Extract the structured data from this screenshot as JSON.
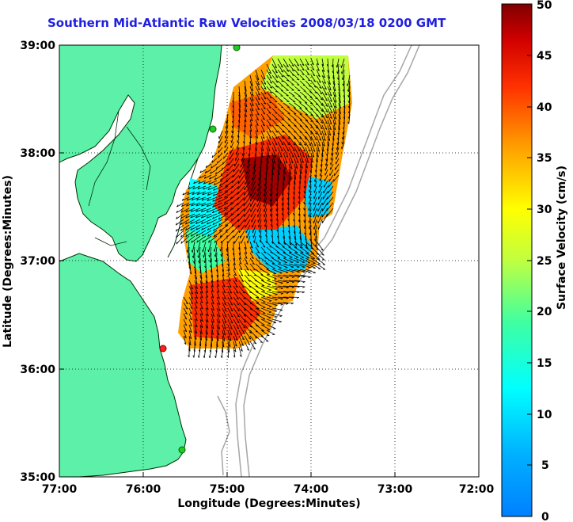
{
  "title": "Southern Mid-Atlantic Raw Velocities 2008/03/18 0200 GMT",
  "x_axis": {
    "label": "Longitude (Degrees:Minutes)",
    "ticks": [
      "77:00",
      "76:00",
      "75:00",
      "74:00",
      "73:00",
      "72:00"
    ]
  },
  "y_axis": {
    "label": "Latitude (Degrees:Minutes)",
    "ticks": [
      "39:00",
      "38:00",
      "37:00",
      "36:00",
      "35:00"
    ]
  },
  "colorbar": {
    "label": "Surface Velocity (cm/s)",
    "ticks": [
      "50",
      "45",
      "40",
      "35",
      "30",
      "25",
      "20",
      "15",
      "10",
      "5",
      "0"
    ],
    "min": 0,
    "max": 50
  },
  "map": {
    "lon_range": [
      -77,
      -72
    ],
    "lat_range": [
      35,
      39
    ],
    "grid": "dotted",
    "land_color": "#5cf0a8",
    "ocean_color": "#ffffff",
    "bathymetry_color": "#a6a6a6",
    "colormap": "jet",
    "station_markers": [
      {
        "name": "green station north",
        "color": "#22cc22"
      },
      {
        "name": "green station mid",
        "color": "#22cc22"
      },
      {
        "name": "red station",
        "color": "#ff2020"
      },
      {
        "name": "green station south",
        "color": "#22cc22"
      }
    ]
  }
}
